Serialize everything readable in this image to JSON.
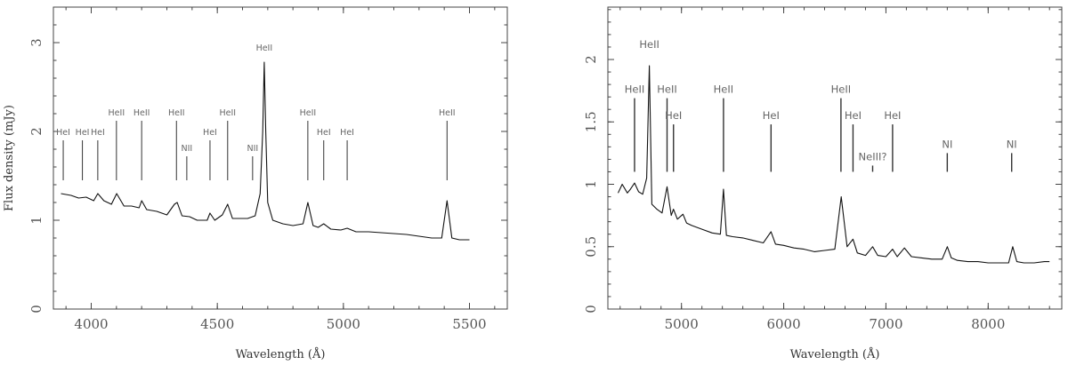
{
  "chart_data": [
    {
      "type": "line",
      "ylabel": "Flux density (mJy)",
      "xlabel": "Wavelength (Å)",
      "xlim": [
        3850,
        5650
      ],
      "ylim": [
        0,
        3.4
      ],
      "xticks": [
        4000,
        4500,
        5000,
        5500
      ],
      "yticks": [
        0,
        1,
        2,
        3
      ],
      "tick_labels_x": [
        "4000",
        "4500",
        "5000",
        "5500"
      ],
      "tick_labels_y": [
        "0",
        "1",
        "2",
        "3"
      ],
      "series": [
        {
          "x": [
            3880,
            3920,
            3950,
            3980,
            4010,
            4026,
            4050,
            4080,
            4101,
            4130,
            4160,
            4190,
            4200,
            4220,
            4260,
            4300,
            4330,
            4341,
            4360,
            4390,
            4420,
            4460,
            4471,
            4490,
            4520,
            4541,
            4560,
            4590,
            4620,
            4650,
            4670,
            4680,
            4686,
            4692,
            4700,
            4720,
            4760,
            4800,
            4840,
            4859,
            4880,
            4900,
            4922,
            4950,
            4990,
            5015,
            5050,
            5100,
            5150,
            5200,
            5250,
            5300,
            5350,
            5390,
            5411,
            5430,
            5460,
            5500
          ],
          "y": [
            1.3,
            1.28,
            1.25,
            1.26,
            1.22,
            1.3,
            1.22,
            1.18,
            1.3,
            1.16,
            1.16,
            1.14,
            1.22,
            1.12,
            1.1,
            1.06,
            1.18,
            1.2,
            1.05,
            1.04,
            1.0,
            1.0,
            1.08,
            1.0,
            1.06,
            1.18,
            1.02,
            1.02,
            1.02,
            1.05,
            1.3,
            2.0,
            2.78,
            2.0,
            1.2,
            1.0,
            0.96,
            0.94,
            0.96,
            1.2,
            0.94,
            0.92,
            0.96,
            0.9,
            0.89,
            0.91,
            0.87,
            0.87,
            0.86,
            0.85,
            0.84,
            0.82,
            0.8,
            0.8,
            1.22,
            0.8,
            0.78,
            0.78
          ]
        }
      ],
      "line_ids": [
        {
          "label": "HeI",
          "x": 3889,
          "y_top": 1.9,
          "y_bottom": 1.45
        },
        {
          "label": "HeI",
          "x": 3965,
          "y_top": 1.9,
          "y_bottom": 1.45
        },
        {
          "label": "HeI",
          "x": 4026,
          "y_top": 1.9,
          "y_bottom": 1.45
        },
        {
          "label": "HeII",
          "x": 4100,
          "y_top": 2.12,
          "y_bottom": 1.45
        },
        {
          "label": "HeII",
          "x": 4200,
          "y_top": 2.12,
          "y_bottom": 1.45
        },
        {
          "label": "HeII",
          "x": 4338,
          "y_top": 2.12,
          "y_bottom": 1.45
        },
        {
          "label": "NII",
          "x": 4379,
          "y_top": 1.72,
          "y_bottom": 1.45
        },
        {
          "label": "HeI",
          "x": 4471,
          "y_top": 1.9,
          "y_bottom": 1.45
        },
        {
          "label": "HeII",
          "x": 4541,
          "y_top": 2.12,
          "y_bottom": 1.45
        },
        {
          "label": "NII",
          "x": 4640,
          "y_top": 1.72,
          "y_bottom": 1.45
        },
        {
          "label": "HeII",
          "x": 4686,
          "y_top": 2.85,
          "y_bottom": 2.85
        },
        {
          "label": "HeII",
          "x": 4859,
          "y_top": 2.12,
          "y_bottom": 1.45
        },
        {
          "label": "HeI",
          "x": 4922,
          "y_top": 1.9,
          "y_bottom": 1.45
        },
        {
          "label": "HeI",
          "x": 5015,
          "y_top": 1.9,
          "y_bottom": 1.45
        },
        {
          "label": "HeII",
          "x": 5411,
          "y_top": 2.12,
          "y_bottom": 1.45
        }
      ]
    },
    {
      "type": "line",
      "xlabel": "Wavelength (Å)",
      "ylabel": "",
      "xlim": [
        4280,
        8720
      ],
      "ylim": [
        0,
        2.42
      ],
      "xticks": [
        5000,
        6000,
        7000,
        8000
      ],
      "yticks": [
        0,
        0.5,
        1,
        1.5,
        2
      ],
      "tick_labels_x": [
        "5000",
        "6000",
        "7000",
        "8000"
      ],
      "tick_labels_y": [
        "0",
        "0.5",
        "1",
        "1.5",
        "2"
      ],
      "series": [
        {
          "x": [
            4380,
            4420,
            4471,
            4500,
            4541,
            4580,
            4620,
            4660,
            4686,
            4710,
            4760,
            4810,
            4859,
            4900,
            4922,
            4960,
            5015,
            5050,
            5100,
            5200,
            5300,
            5380,
            5411,
            5440,
            5500,
            5600,
            5700,
            5800,
            5876,
            5920,
            6000,
            6100,
            6200,
            6300,
            6400,
            6500,
            6563,
            6620,
            6678,
            6720,
            6800,
            6870,
            6920,
            7000,
            7065,
            7110,
            7181,
            7250,
            7350,
            7450,
            7550,
            7600,
            7640,
            7700,
            7800,
            7900,
            8000,
            8100,
            8200,
            8240,
            8280,
            8350,
            8450,
            8550,
            8600
          ],
          "y": [
            0.93,
            1.0,
            0.93,
            0.96,
            1.01,
            0.94,
            0.92,
            1.05,
            1.95,
            0.84,
            0.8,
            0.77,
            0.98,
            0.75,
            0.8,
            0.72,
            0.76,
            0.69,
            0.67,
            0.64,
            0.61,
            0.6,
            0.96,
            0.59,
            0.58,
            0.57,
            0.55,
            0.53,
            0.62,
            0.52,
            0.51,
            0.49,
            0.48,
            0.46,
            0.47,
            0.48,
            0.9,
            0.5,
            0.56,
            0.45,
            0.43,
            0.5,
            0.43,
            0.42,
            0.48,
            0.42,
            0.49,
            0.42,
            0.41,
            0.4,
            0.4,
            0.5,
            0.41,
            0.39,
            0.38,
            0.38,
            0.37,
            0.37,
            0.37,
            0.5,
            0.38,
            0.37,
            0.37,
            0.38,
            0.38
          ]
        }
      ],
      "line_ids": [
        {
          "label": "HeII",
          "x": 4541,
          "y_top": 1.69,
          "y_bottom": 1.1
        },
        {
          "label": "HeII",
          "x": 4686,
          "y_top": 2.05,
          "y_bottom": 2.05
        },
        {
          "label": "HeII",
          "x": 4859,
          "y_top": 1.69,
          "y_bottom": 1.1
        },
        {
          "label": "HeI",
          "x": 4922,
          "y_top": 1.48,
          "y_bottom": 1.1
        },
        {
          "label": "HeII",
          "x": 5411,
          "y_top": 1.69,
          "y_bottom": 1.1
        },
        {
          "label": "HeI",
          "x": 5876,
          "y_top": 1.48,
          "y_bottom": 1.1
        },
        {
          "label": "HeII",
          "x": 6560,
          "y_top": 1.69,
          "y_bottom": 1.1
        },
        {
          "label": "HeI",
          "x": 6678,
          "y_top": 1.48,
          "y_bottom": 1.1
        },
        {
          "label": "NeIII?",
          "x": 6870,
          "y_top": 1.15,
          "y_bottom": 1.1
        },
        {
          "label": "HeI",
          "x": 7065,
          "y_top": 1.48,
          "y_bottom": 1.1
        },
        {
          "label": "NI",
          "x": 7600,
          "y_top": 1.25,
          "y_bottom": 1.1
        },
        {
          "label": "NI",
          "x": 8230,
          "y_top": 1.25,
          "y_bottom": 1.1
        }
      ]
    }
  ]
}
